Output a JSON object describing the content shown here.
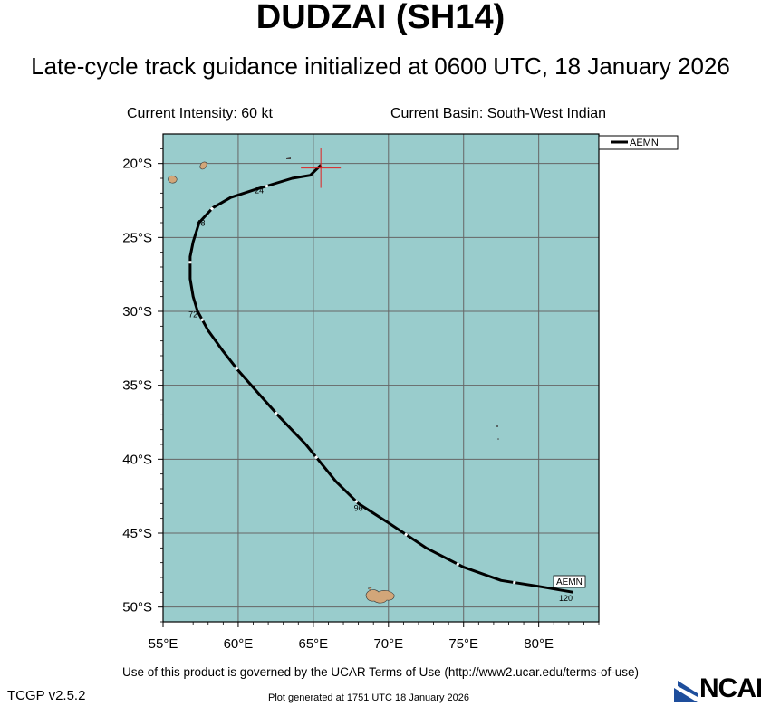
{
  "header": {
    "title": "DUDZAI (SH14)",
    "subtitle": "Late-cycle track guidance initialized at 0600 UTC, 18 January 2026",
    "intensity": "Current Intensity: 60 kt",
    "basin": "Current Basin: South-West Indian"
  },
  "map": {
    "lon_range": [
      55,
      84
    ],
    "lat_range": [
      -51,
      -18
    ],
    "ocean_color": "#99cccc",
    "land_color": "#d2a679",
    "lon_ticks": [
      {
        "value": 55,
        "label": "55°E"
      },
      {
        "value": 60,
        "label": "60°E"
      },
      {
        "value": 65,
        "label": "65°E"
      },
      {
        "value": 70,
        "label": "70°E"
      },
      {
        "value": 75,
        "label": "75°E"
      },
      {
        "value": 80,
        "label": "80°E"
      }
    ],
    "lat_ticks": [
      {
        "value": -20,
        "label": "20°S"
      },
      {
        "value": -25,
        "label": "25°S"
      },
      {
        "value": -30,
        "label": "30°S"
      },
      {
        "value": -35,
        "label": "35°S"
      },
      {
        "value": -40,
        "label": "40°S"
      },
      {
        "value": -45,
        "label": "45°S"
      },
      {
        "value": -50,
        "label": "50°S"
      }
    ],
    "current_position": {
      "lon": 65.5,
      "lat": -20.3
    }
  },
  "track": {
    "model": "AEMN",
    "points": [
      [
        65.5,
        -20.1
      ],
      [
        64.8,
        -20.8
      ],
      [
        63.6,
        -21.0
      ],
      [
        62.3,
        -21.4
      ],
      [
        61.0,
        -21.8
      ],
      [
        59.5,
        -22.3
      ],
      [
        58.3,
        -23.0
      ],
      [
        57.4,
        -24.0
      ],
      [
        57.0,
        -25.3
      ],
      [
        56.8,
        -26.3
      ],
      [
        56.8,
        -27.8
      ],
      [
        57.0,
        -29.0
      ],
      [
        57.3,
        -30.0
      ],
      [
        58.0,
        -31.3
      ],
      [
        59.0,
        -32.7
      ],
      [
        60.0,
        -34.0
      ],
      [
        61.3,
        -35.5
      ],
      [
        62.8,
        -37.2
      ],
      [
        64.5,
        -39.0
      ],
      [
        66.5,
        -41.5
      ],
      [
        68.0,
        -43.0
      ],
      [
        70.0,
        -44.3
      ],
      [
        72.5,
        -46.0
      ],
      [
        75.0,
        -47.3
      ],
      [
        77.5,
        -48.2
      ],
      [
        80.0,
        -48.6
      ],
      [
        82.3,
        -49.0
      ]
    ],
    "forecast_labels": [
      {
        "text": "24",
        "lon": 61.4,
        "lat": -22.0
      },
      {
        "text": "48",
        "lon": 57.5,
        "lat": -24.2
      },
      {
        "text": "72",
        "lon": 57.0,
        "lat": -30.4
      },
      {
        "text": "96",
        "lon": 68.0,
        "lat": -43.5
      },
      {
        "text": "120",
        "lon": 81.8,
        "lat": -49.6
      }
    ]
  },
  "legend": {
    "label": "AEMN"
  },
  "footer": {
    "terms": "Use of this product is governed by the UCAR Terms of Use (http://www2.ucar.edu/terms-of-use)",
    "version": "TCGP v2.5.2",
    "generated": "Plot generated at 1751 UTC   18 January 2026",
    "logo_text": "NCAR"
  }
}
